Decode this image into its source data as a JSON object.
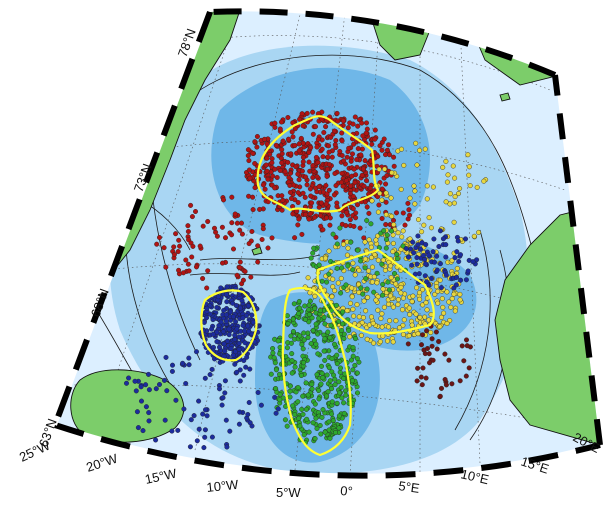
{
  "map": {
    "projection": "polar-stereographic sector",
    "colors": {
      "land": "#7ccd6a",
      "deep_basin": "#6fb7e8",
      "mid_depth": "#a9d6f3",
      "shelf": "#dcefff",
      "frame_dark": "#000000",
      "frame_light": "#ffffff",
      "contour": "#1a1a1a",
      "region_outline": "#ffff33"
    },
    "lat_labels": [
      {
        "id": "lat-78",
        "text": "78°N"
      },
      {
        "id": "lat-73",
        "text": "73°N"
      },
      {
        "id": "lat-68",
        "text": "68°N"
      },
      {
        "id": "lat-63",
        "text": "63°N"
      }
    ],
    "lon_labels": [
      {
        "id": "lon-25w",
        "text": "25°W"
      },
      {
        "id": "lon-20w",
        "text": "20°W"
      },
      {
        "id": "lon-15w",
        "text": "15°W"
      },
      {
        "id": "lon-10w",
        "text": "10°W"
      },
      {
        "id": "lon-5w",
        "text": "5°W"
      },
      {
        "id": "lon-0",
        "text": "0°"
      },
      {
        "id": "lon-5e",
        "text": "5°E"
      },
      {
        "id": "lon-10e",
        "text": "10°E"
      },
      {
        "id": "lon-15e",
        "text": "15°E"
      },
      {
        "id": "lon-20e",
        "text": "20°E"
      }
    ],
    "point_groups": [
      {
        "id": "greenland-basin",
        "color": "#b01414"
      },
      {
        "id": "lofoten-basin",
        "color": "#e6d640"
      },
      {
        "id": "norwegian-basin",
        "color": "#2ea82e"
      },
      {
        "id": "iceland-plateau",
        "color": "#1c2c9e"
      },
      {
        "id": "norwegian-slope",
        "color": "#6b1616"
      }
    ]
  }
}
